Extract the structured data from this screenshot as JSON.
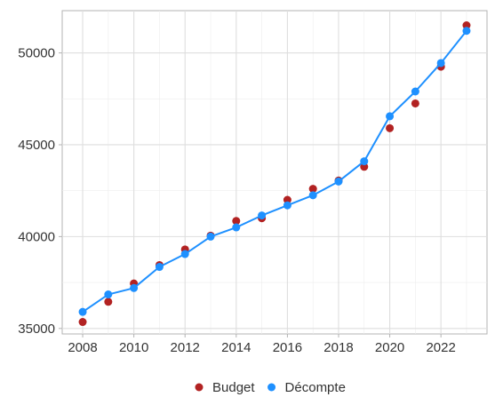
{
  "chart_data": {
    "type": "line",
    "title": "",
    "xlabel": "",
    "ylabel": "",
    "x": [
      2008,
      2009,
      2010,
      2011,
      2012,
      2013,
      2014,
      2015,
      2016,
      2017,
      2018,
      2019,
      2020,
      2021,
      2022,
      2023
    ],
    "xlim": [
      2007.2,
      2023.8
    ],
    "ylim": [
      34700,
      52300
    ],
    "x_ticks": [
      "2008",
      "2010",
      "2012",
      "2014",
      "2016",
      "2018",
      "2020",
      "2022"
    ],
    "y_ticks": [
      "35000",
      "40000",
      "45000",
      "50000"
    ],
    "grid": true,
    "legend_position": "bottom",
    "series": [
      {
        "name": "Budget",
        "style": "points",
        "color": "#b22222",
        "values": [
          35350,
          36450,
          37450,
          38450,
          39300,
          40050,
          40850,
          41000,
          42000,
          42600,
          43050,
          43800,
          45900,
          47250,
          49250,
          51500
        ]
      },
      {
        "name": "Décompte",
        "style": "line+points",
        "color": "#1e90ff",
        "values": [
          35900,
          36850,
          37200,
          38350,
          39050,
          40000,
          40500,
          41150,
          41700,
          42250,
          43000,
          44100,
          46550,
          47900,
          49450,
          51200
        ]
      }
    ]
  }
}
